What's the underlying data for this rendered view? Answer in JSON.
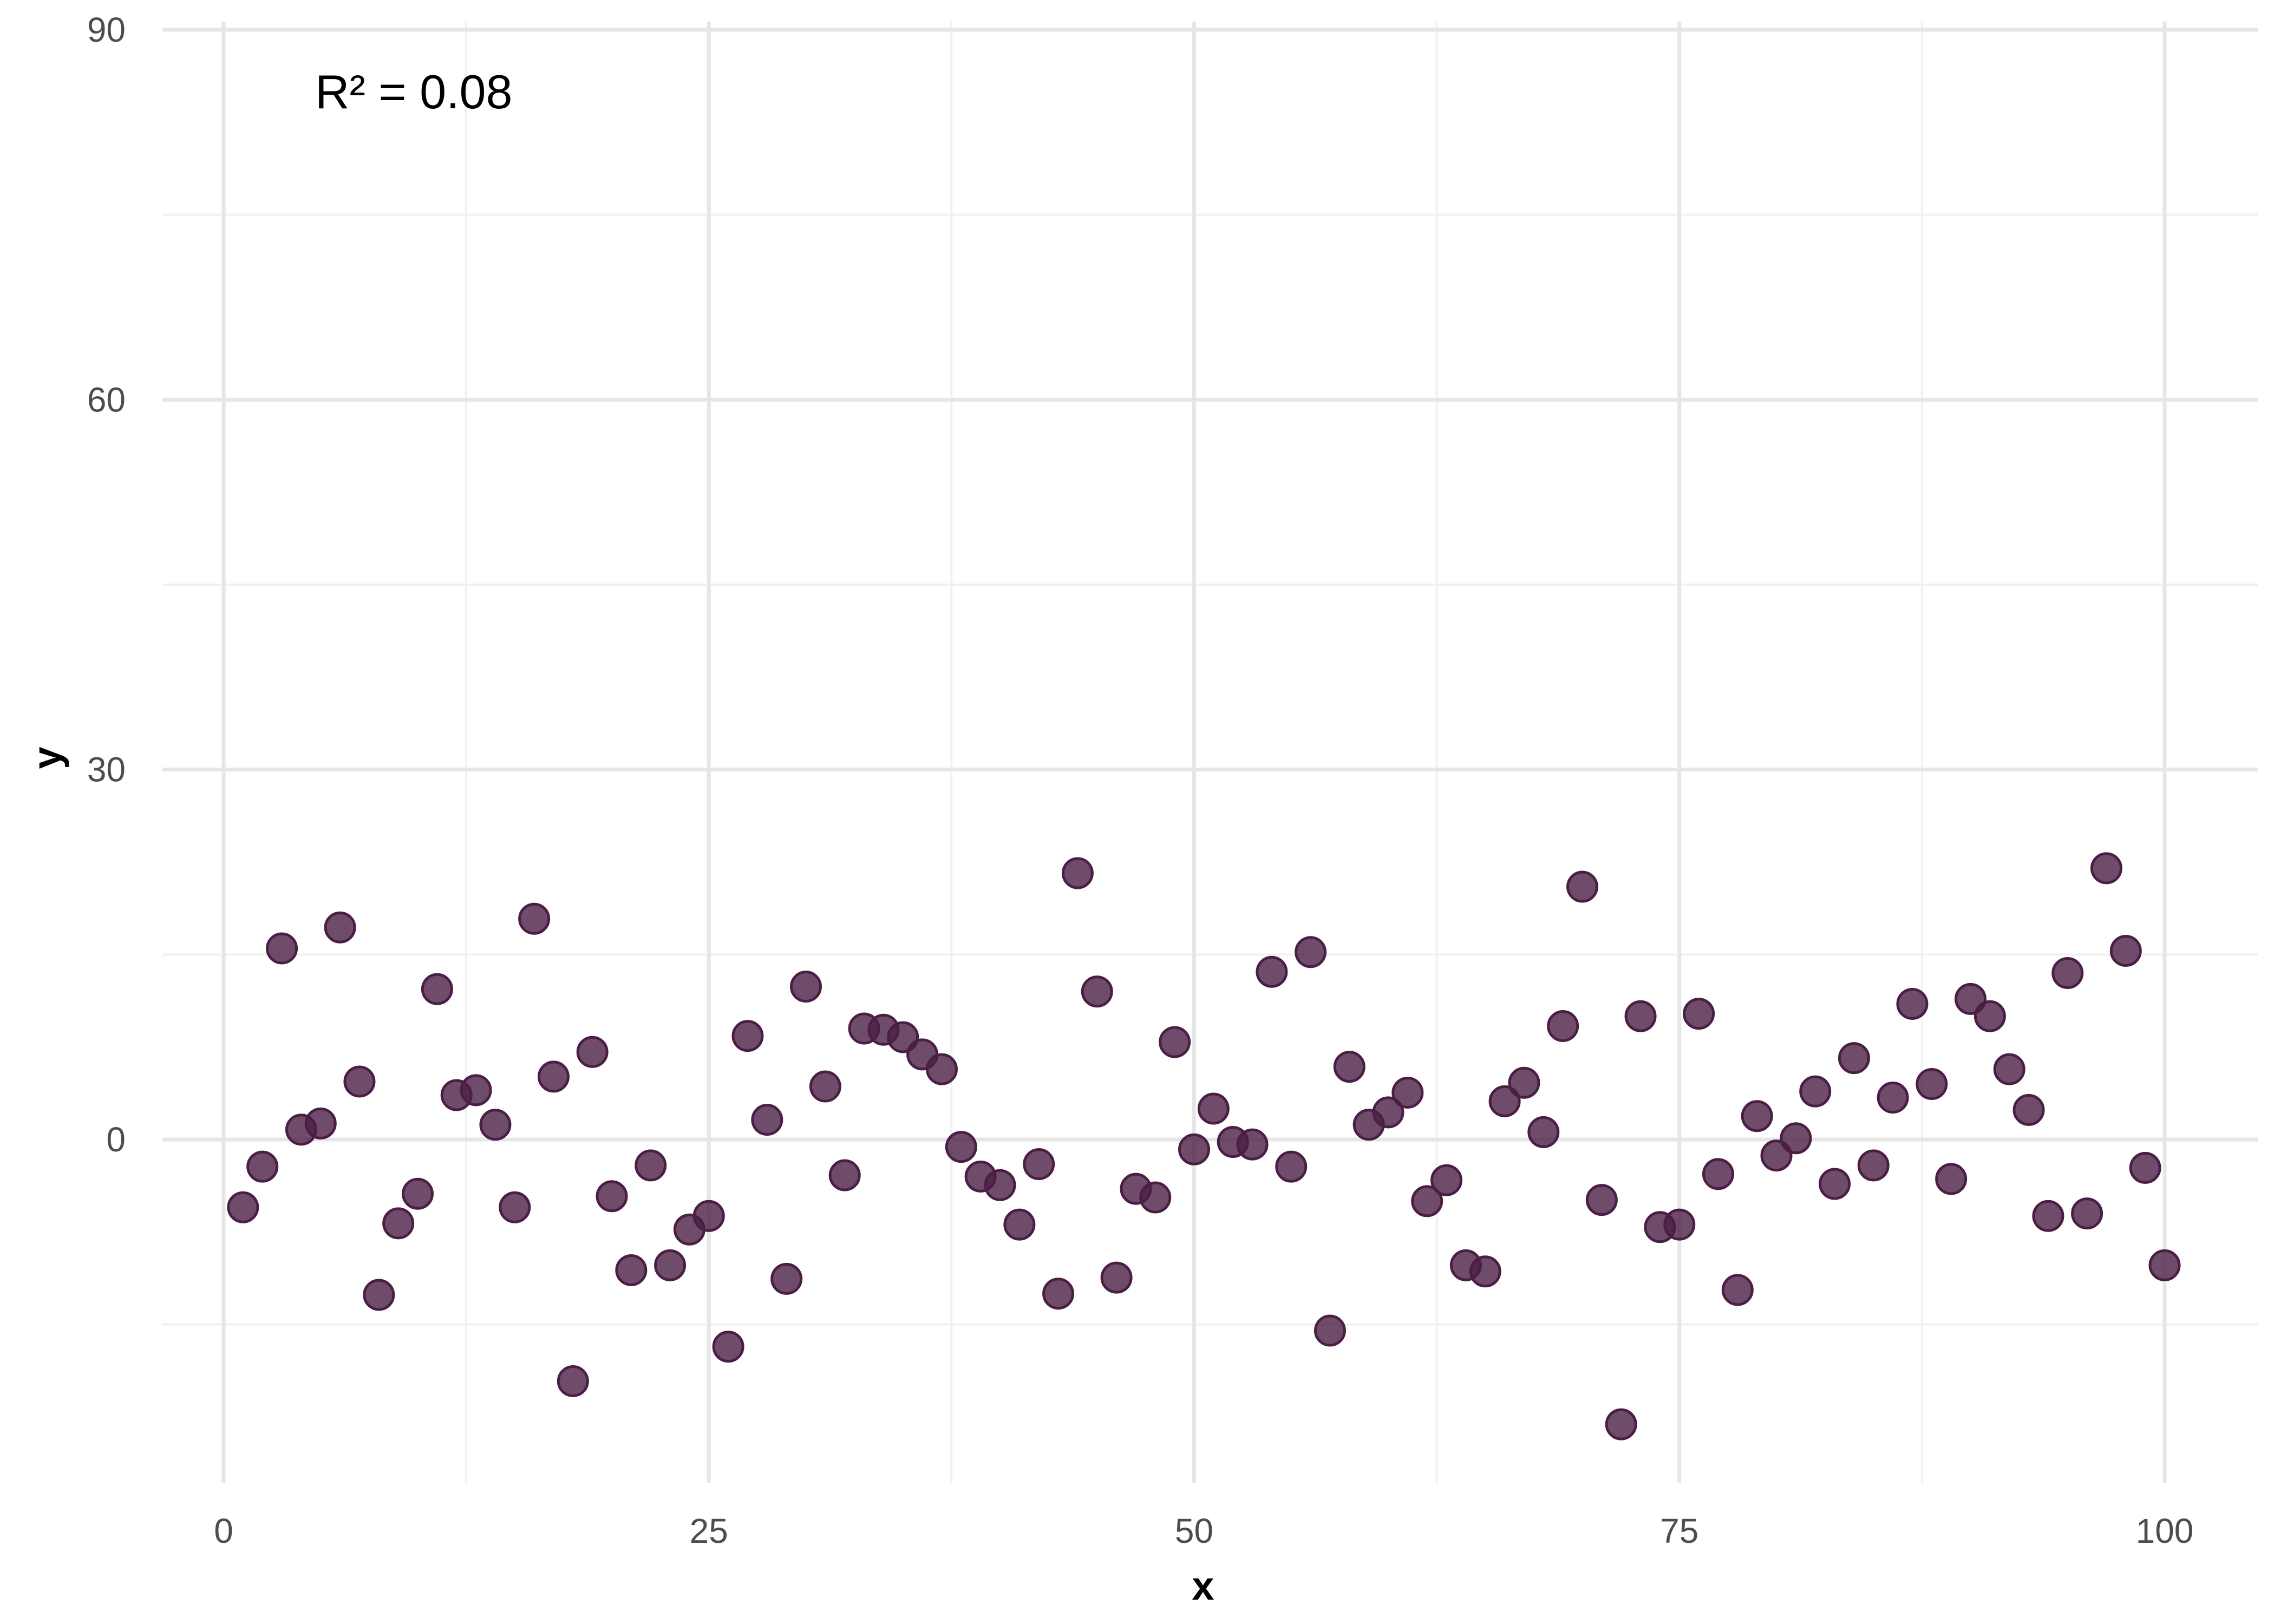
{
  "chart_data": {
    "type": "scatter",
    "title": "",
    "xlabel": "x",
    "ylabel": "y",
    "xlim": [
      -5,
      105
    ],
    "ylim": [
      -28,
      90
    ],
    "x_ticks": [
      0,
      25,
      50,
      75,
      100
    ],
    "y_ticks": [
      0,
      30,
      60,
      90
    ],
    "x_tick_labels": [
      "0",
      "25",
      "50",
      "75",
      "100"
    ],
    "y_tick_labels": [
      "0",
      "30",
      "60",
      "90"
    ],
    "grid": true,
    "annotation": "R² = 0.08",
    "point_color": "#4b1f45",
    "series": [
      {
        "x": [
          1,
          2,
          3,
          4,
          5,
          6,
          7,
          8,
          9,
          10,
          11,
          12,
          13,
          14,
          15,
          16,
          17,
          18,
          19,
          20,
          21,
          22,
          23,
          24,
          25,
          26,
          27,
          28,
          29,
          30,
          31,
          32,
          33,
          34,
          35,
          36,
          37,
          38,
          39,
          40,
          41,
          42,
          43,
          44,
          45,
          46,
          47,
          48,
          49,
          50,
          51,
          52,
          53,
          54,
          55,
          56,
          57,
          58,
          59,
          60,
          61,
          62,
          63,
          64,
          65,
          66,
          67,
          68,
          69,
          70,
          71,
          72,
          73,
          74,
          75,
          76,
          77,
          78,
          79,
          80,
          81,
          82,
          83,
          84,
          85,
          86,
          87,
          88,
          89,
          90,
          91,
          92,
          93,
          94,
          95,
          96,
          97,
          98,
          99,
          100
        ],
        "y": [
          -5.5,
          -2.2,
          15.5,
          0.8,
          1.3,
          17.2,
          4.7,
          -12.6,
          -6.8,
          -4.4,
          12.2,
          3.6,
          4.0,
          1.2,
          -5.5,
          17.9,
          5.1,
          -19.6,
          7.1,
          -4.6,
          -10.6,
          -2.1,
          -10.2,
          -7.3,
          -6.2,
          -16.8,
          8.4,
          1.6,
          -11.3,
          12.4,
          4.3,
          -2.9,
          9.0,
          8.9,
          8.3,
          6.9,
          5.7,
          -0.6,
          -3.0,
          -3.7,
          -6.9,
          -2.0,
          -12.5,
          21.6,
          12.0,
          -11.2,
          -4.0,
          -4.7,
          7.9,
          -0.8,
          2.5,
          -0.2,
          -0.4,
          13.6,
          -2.2,
          15.2,
          -15.5,
          5.9,
          1.2,
          2.2,
          3.8,
          -5.0,
          -3.3,
          -10.2,
          -10.7,
          3.1,
          4.6,
          0.6,
          9.2,
          20.5,
          -4.9,
          -23.1,
          10.0,
          -7.1,
          -6.9,
          10.2,
          -2.8,
          -12.2,
          1.9,
          -1.3,
          0.1,
          3.9,
          -3.6,
          6.6,
          -2.1,
          3.4,
          11.0,
          4.5,
          -3.2,
          11.4,
          10.0,
          5.7,
          2.4,
          -6.2,
          13.5,
          -6.0,
          22.0,
          15.3,
          -2.3,
          -10.2
        ]
      }
    ]
  }
}
